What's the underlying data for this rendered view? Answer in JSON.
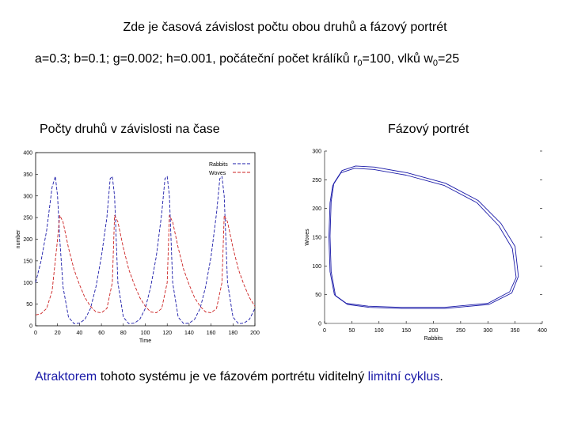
{
  "title": "Zde je časová závislost počtu obou druhů a fázový portrét",
  "params": {
    "text": "a=0.3; b=0.1; g=0.002; h=0.001, počáteční počet králíků r",
    "r_sub": "0",
    "r_value": "=100, vlků w",
    "w_sub": "0",
    "w_value": "=25"
  },
  "left_heading": "Počty druhů v závislosti na čase",
  "right_heading": "Fázový portrét",
  "footer": {
    "part1": "Atraktorem",
    "part2": " tohoto systému je ve fázovém portrétu viditelný ",
    "part3": "limitní cyklus",
    "part4": "."
  },
  "colors": {
    "blue": "#1a1aa8",
    "red": "#cc2222"
  },
  "chart_data": [
    {
      "type": "line",
      "xlabel": "Time",
      "ylabel": "number",
      "xlim": [
        0,
        200
      ],
      "ylim": [
        0,
        400
      ],
      "xticks": [
        "0",
        "20",
        "40",
        "60",
        "80",
        "100",
        "120",
        "140",
        "160",
        "180",
        "200"
      ],
      "yticks": [
        "0",
        "50",
        "100",
        "150",
        "200",
        "250",
        "300",
        "350",
        "400"
      ],
      "legend_position": "top-right",
      "series": [
        {
          "name": "Rabbits",
          "color": "#1a1aa8",
          "dash": "dashed",
          "x": [
            0,
            5,
            10,
            15,
            18,
            20,
            22,
            25,
            30,
            35,
            40,
            45,
            50,
            55,
            60,
            65,
            68,
            70,
            72,
            75,
            80,
            85,
            90,
            95,
            100,
            105,
            110,
            115,
            118,
            120,
            122,
            125,
            130,
            135,
            140,
            145,
            150,
            155,
            160,
            165,
            168,
            170,
            172,
            175,
            180,
            185,
            190,
            195,
            200
          ],
          "y": [
            100,
            150,
            220,
            320,
            345,
            300,
            200,
            90,
            20,
            5,
            6,
            15,
            40,
            90,
            160,
            250,
            340,
            345,
            300,
            100,
            20,
            5,
            6,
            15,
            40,
            90,
            160,
            260,
            340,
            345,
            300,
            100,
            20,
            5,
            6,
            15,
            40,
            90,
            160,
            260,
            340,
            345,
            300,
            100,
            20,
            5,
            6,
            15,
            40
          ]
        },
        {
          "name": "Woves",
          "color": "#cc2222",
          "dash": "dashed",
          "x": [
            0,
            5,
            10,
            15,
            20,
            22,
            25,
            30,
            35,
            40,
            45,
            50,
            55,
            60,
            65,
            70,
            72,
            75,
            80,
            85,
            90,
            95,
            100,
            105,
            110,
            115,
            120,
            122,
            125,
            130,
            135,
            140,
            145,
            150,
            155,
            160,
            165,
            170,
            172,
            175,
            180,
            185,
            190,
            195,
            200
          ],
          "y": [
            25,
            28,
            40,
            80,
            200,
            255,
            240,
            180,
            130,
            95,
            65,
            45,
            32,
            30,
            40,
            100,
            255,
            240,
            180,
            130,
            95,
            65,
            45,
            32,
            30,
            40,
            100,
            255,
            240,
            180,
            130,
            95,
            65,
            45,
            32,
            30,
            40,
            100,
            255,
            240,
            180,
            130,
            95,
            65,
            45
          ]
        }
      ]
    },
    {
      "type": "line",
      "xlabel": "Rabbits",
      "ylabel": "Woves",
      "xlim": [
        0,
        400
      ],
      "ylim": [
        0,
        300
      ],
      "xticks": [
        "0",
        "50",
        "100",
        "150",
        "200",
        "250",
        "300",
        "350",
        "400"
      ],
      "yticks": [
        "0",
        "50",
        "100",
        "150",
        "200",
        "250",
        "300"
      ],
      "series": [
        {
          "name": "",
          "color": "#1a1aa8",
          "x": [
            15,
            30,
            55,
            90,
            150,
            220,
            280,
            320,
            345,
            352,
            340,
            300,
            220,
            140,
            80,
            40,
            18,
            10,
            8,
            10,
            15
          ],
          "y": [
            240,
            262,
            270,
            268,
            258,
            240,
            210,
            170,
            130,
            80,
            55,
            35,
            28,
            28,
            30,
            35,
            50,
            90,
            150,
            210,
            240
          ]
        },
        {
          "name": "",
          "color": "#1a1aa8",
          "x": [
            17,
            32,
            57,
            92,
            152,
            222,
            282,
            324,
            350,
            356,
            344,
            302,
            222,
            142,
            82,
            42,
            20,
            12,
            10,
            12,
            17
          ],
          "y": [
            244,
            266,
            274,
            272,
            262,
            244,
            214,
            174,
            134,
            82,
            53,
            33,
            26,
            26,
            28,
            33,
            48,
            90,
            152,
            212,
            244
          ]
        }
      ]
    }
  ]
}
